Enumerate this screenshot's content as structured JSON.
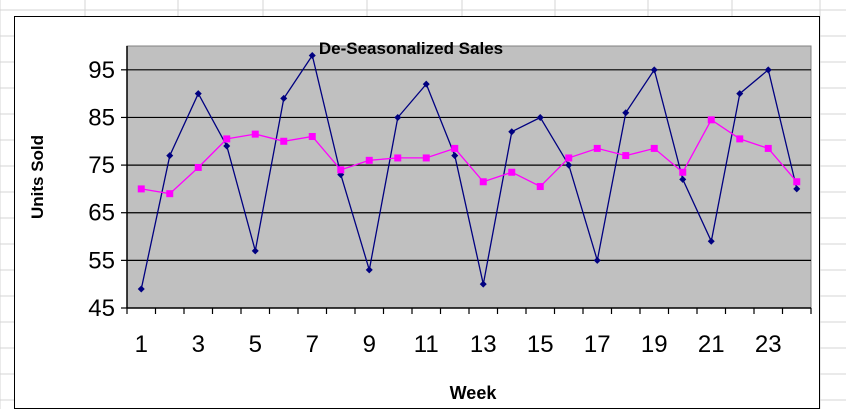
{
  "chart_data": {
    "type": "line",
    "title": "De-Seasonalized Sales",
    "xlabel": "Week",
    "ylabel": "Units Sold",
    "x": [
      1,
      2,
      3,
      4,
      5,
      6,
      7,
      8,
      9,
      10,
      11,
      12,
      13,
      14,
      15,
      16,
      17,
      18,
      19,
      20,
      21,
      22,
      23,
      24
    ],
    "xtick_labels": [
      "1",
      "3",
      "5",
      "7",
      "9",
      "11",
      "13",
      "15",
      "17",
      "19",
      "21",
      "23"
    ],
    "ylim": [
      45,
      100
    ],
    "yticks": [
      45,
      55,
      65,
      75,
      85,
      95
    ],
    "grid": "horizontal",
    "plot_background": "#c0c0c0",
    "series": [
      {
        "color": "#000080",
        "marker": "diamond",
        "values": [
          49,
          77,
          90,
          79,
          57,
          89,
          98,
          73,
          53,
          85,
          92,
          77,
          50,
          82,
          85,
          75,
          55,
          86,
          95,
          72,
          59,
          90,
          95,
          70
        ]
      },
      {
        "color": "#ff00ff",
        "marker": "square",
        "values": [
          70,
          69,
          74.5,
          80.5,
          81.5,
          80,
          81,
          74,
          76,
          76.5,
          76.5,
          78.5,
          71.5,
          73.5,
          70.5,
          76.5,
          78.5,
          77,
          78.5,
          73.5,
          84.5,
          80.5,
          78.5,
          71.5
        ]
      }
    ]
  }
}
